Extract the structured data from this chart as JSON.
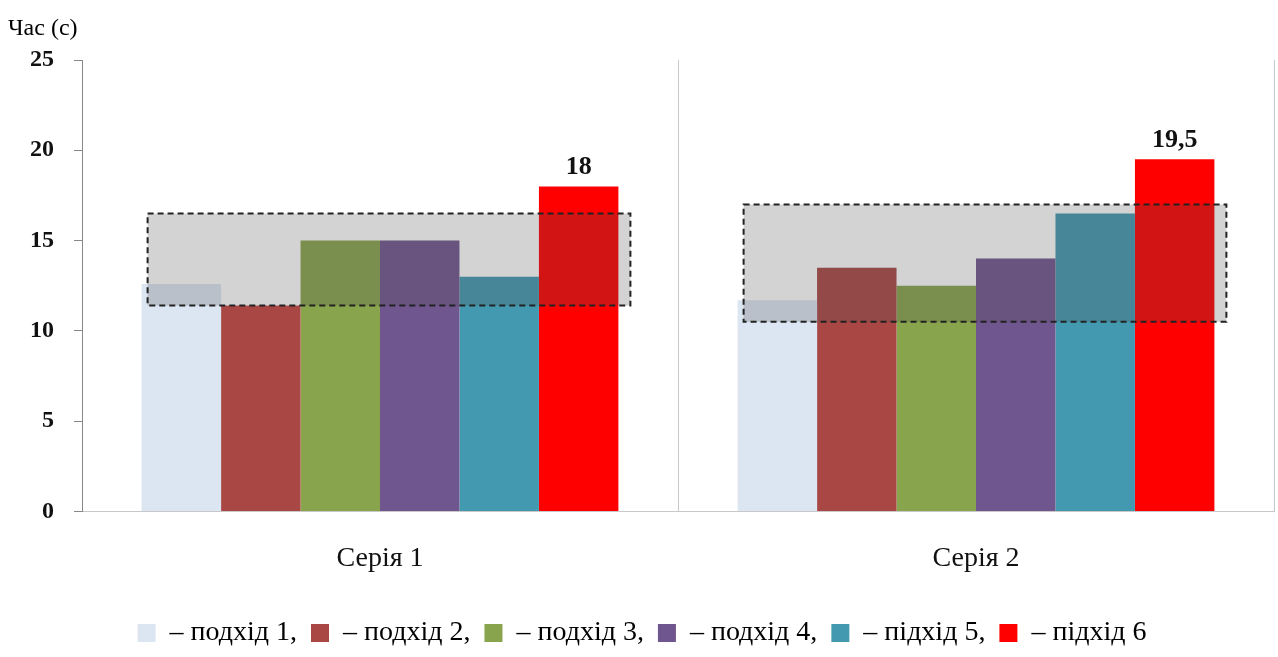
{
  "chart_data": {
    "type": "bar",
    "ylabel": "Час (с)",
    "categories": [
      "Серія 1",
      "Серія 2"
    ],
    "series": [
      {
        "name": "– подхід 1,",
        "color": "#dce6f2",
        "values": [
          12.6,
          11.7
        ]
      },
      {
        "name": "– подхід 2,",
        "color": "#a94744",
        "values": [
          11.4,
          13.5
        ]
      },
      {
        "name": "– подхід 3,",
        "color": "#88a44c",
        "values": [
          15,
          12.5
        ]
      },
      {
        "name": "– подхід 4,",
        "color": "#70568e",
        "values": [
          15,
          14
        ]
      },
      {
        "name": "– підхід 5,",
        "color": "#4399b0",
        "values": [
          13,
          16.5
        ]
      },
      {
        "name": "– підхід 6",
        "color": "#ff0000",
        "values": [
          18,
          19.5
        ],
        "value_labels": [
          "18",
          "19,5"
        ]
      }
    ],
    "bands": [
      {
        "axis": "y",
        "from": 11.4,
        "to": 16.5,
        "color": "#505050"
      },
      {
        "axis": "y",
        "from": 10.5,
        "to": 17,
        "color": "#505050"
      }
    ],
    "ylim": [
      0,
      25
    ],
    "yticks": [
      0,
      5,
      10,
      15,
      20,
      25
    ],
    "grid": "x",
    "legend": "bottom"
  }
}
